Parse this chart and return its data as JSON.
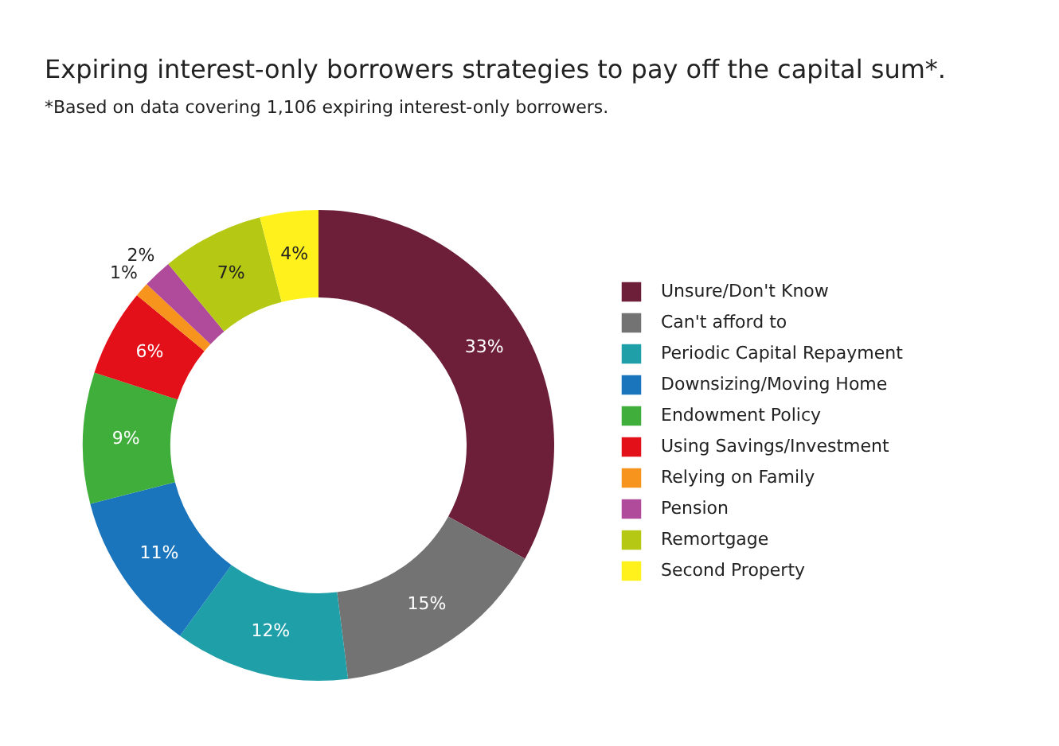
{
  "chart_data": {
    "type": "donut",
    "title": "Expiring interest-only borrowers strategies to pay off the capital sum*.",
    "subtitle": "*Based on data covering 1,106 expiring interest-only borrowers.",
    "categories": [
      "Unsure/Don't Know",
      "Can't afford to",
      "Periodic Capital Repayment",
      "Downsizing/Moving Home",
      "Endowment Policy",
      "Using Savings/Investment",
      "Relying on Family",
      "Pension",
      "Remortgage",
      "Second Property"
    ],
    "values": [
      33,
      15,
      12,
      11,
      9,
      6,
      1,
      2,
      7,
      4
    ],
    "value_labels": [
      "33%",
      "15%",
      "12%",
      "11%",
      "9%",
      "6%",
      "1%",
      "2%",
      "7%",
      "4%"
    ],
    "colors": [
      "#6d1f3a",
      "#737373",
      "#1fa0a8",
      "#1a75bd",
      "#3fae3a",
      "#e3101a",
      "#f7941d",
      "#b04a9b",
      "#b5c914",
      "#fff21c"
    ],
    "legend": "right"
  }
}
